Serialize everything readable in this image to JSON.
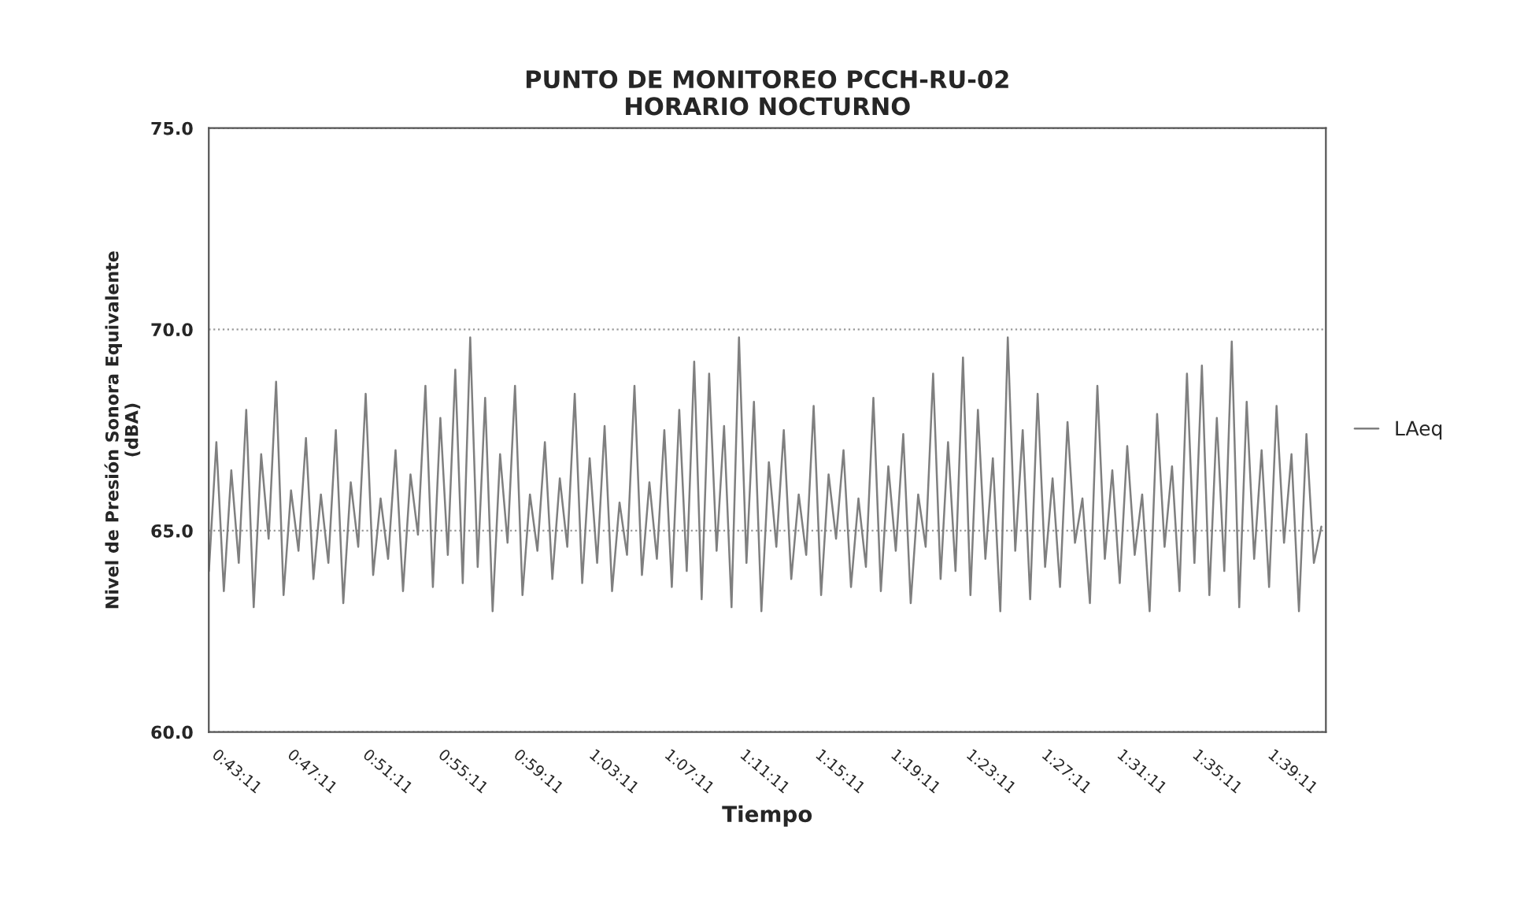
{
  "chart_data": {
    "type": "line",
    "title": "PUNTO DE MONITOREO PCCH-RU-02\nHORARIO NOCTURNO",
    "xlabel": "Tiempo",
    "ylabel": "Nivel de Presión Sonora Equivalente\n(dBA)",
    "series": [
      {
        "name": "LAeq",
        "color": "#7f7f7f",
        "x": [
          0.7112,
          0.7178,
          0.7244,
          0.731,
          0.7376,
          0.7442,
          0.7508,
          0.7574,
          0.764,
          0.7706,
          0.7772,
          0.7838,
          0.7904,
          0.797,
          0.8036,
          0.8102,
          0.8168,
          0.8234,
          0.83,
          0.8366,
          0.8432,
          0.8498,
          0.8564,
          0.863,
          0.8696,
          0.8762,
          0.8828,
          0.8894,
          0.896,
          0.9026,
          0.9092,
          0.9158,
          0.9224,
          0.929,
          0.9356,
          0.9422,
          0.9488,
          0.9554,
          0.962,
          0.9686,
          0.9752,
          0.9818,
          0.9884,
          0.995,
          1.0016,
          1.0082,
          1.0148,
          1.0214,
          1.028,
          1.0346,
          1.0412,
          1.0478,
          1.0544,
          1.061,
          1.0676,
          1.0742,
          1.0808,
          1.0874,
          1.094,
          1.1006,
          1.1072,
          1.1138,
          1.1204,
          1.127,
          1.1336,
          1.1402,
          1.1468,
          1.1534,
          1.16,
          1.1666,
          1.1732,
          1.1798,
          1.1864,
          1.193,
          1.1996,
          1.2062,
          1.2128,
          1.2194,
          1.226,
          1.2326,
          1.2392,
          1.2458,
          1.2524,
          1.259,
          1.2656,
          1.2722,
          1.2788,
          1.2854,
          1.292,
          1.2986,
          1.3052,
          1.3118,
          1.3184,
          1.325,
          1.3316,
          1.3382,
          1.3448,
          1.3514,
          1.358,
          1.3646,
          1.3712,
          1.3778,
          1.3844,
          1.391,
          1.3976,
          1.4042,
          1.4108,
          1.4174,
          1.424,
          1.4306,
          1.4372,
          1.4438,
          1.4504,
          1.457,
          1.4636,
          1.4702,
          1.4768,
          1.4834,
          1.49,
          1.4966,
          1.5032,
          1.5098,
          1.5164,
          1.523,
          1.5296,
          1.5362,
          1.5428,
          1.5494,
          1.556,
          1.5626,
          1.5692,
          1.5758,
          1.5824,
          1.589,
          1.5956,
          1.6022,
          1.6088,
          1.6154,
          1.622,
          1.6286,
          1.6352,
          1.6418,
          1.6484,
          1.655,
          1.6616,
          1.6682,
          1.6748,
          1.6814,
          1.688,
          1.6946
        ],
        "values": [
          64.0,
          67.2,
          63.5,
          66.5,
          64.2,
          68.0,
          63.1,
          66.9,
          64.8,
          68.7,
          63.4,
          66.0,
          64.5,
          67.3,
          63.8,
          65.9,
          64.2,
          67.5,
          63.2,
          66.2,
          64.6,
          68.4,
          63.9,
          65.8,
          64.3,
          67.0,
          63.5,
          66.4,
          64.9,
          68.6,
          63.6,
          67.8,
          64.4,
          69.0,
          63.7,
          69.8,
          64.1,
          68.3,
          63.0,
          66.9,
          64.7,
          68.6,
          63.4,
          65.9,
          64.5,
          67.2,
          63.8,
          66.3,
          64.6,
          68.4,
          63.7,
          66.8,
          64.2,
          67.6,
          63.5,
          65.7,
          64.4,
          68.6,
          63.9,
          66.2,
          64.3,
          67.5,
          63.6,
          68.0,
          64.0,
          69.2,
          63.3,
          68.9,
          64.5,
          67.6,
          63.1,
          69.8,
          64.2,
          68.2,
          63.0,
          66.7,
          64.6,
          67.5,
          63.8,
          65.9,
          64.4,
          68.1,
          63.4,
          66.4,
          64.8,
          67.0,
          63.6,
          65.8,
          64.1,
          68.3,
          63.5,
          66.6,
          64.5,
          67.4,
          63.2,
          65.9,
          64.6,
          68.9,
          63.8,
          67.2,
          64.0,
          69.3,
          63.4,
          68.0,
          64.3,
          66.8,
          63.0,
          69.8,
          64.5,
          67.5,
          63.3,
          68.4,
          64.1,
          66.3,
          63.6,
          67.7,
          64.7,
          65.8,
          63.2,
          68.6,
          64.3,
          66.5,
          63.7,
          67.1,
          64.4,
          65.9,
          63.0,
          67.9,
          64.6,
          66.6,
          63.5,
          68.9,
          64.2,
          69.1,
          63.4,
          67.8,
          64.0,
          69.7,
          63.1,
          68.2,
          64.3,
          67.0,
          63.6,
          68.1,
          64.7,
          66.9,
          63.0,
          67.4,
          64.2,
          65.1
        ]
      }
    ],
    "xlim": [
      0.7111,
      1.6986
    ],
    "xticks": [
      {
        "value": 0.71972,
        "label": "0:43:11"
      },
      {
        "value": 0.78639,
        "label": "0:47:11"
      },
      {
        "value": 0.85306,
        "label": "0:51:11"
      },
      {
        "value": 0.91972,
        "label": "0:55:11"
      },
      {
        "value": 0.98639,
        "label": "0:59:11"
      },
      {
        "value": 1.05306,
        "label": "1:03:11"
      },
      {
        "value": 1.11972,
        "label": "1:07:11"
      },
      {
        "value": 1.18639,
        "label": "1:11:11"
      },
      {
        "value": 1.25306,
        "label": "1:15:11"
      },
      {
        "value": 1.31972,
        "label": "1:19:11"
      },
      {
        "value": 1.38639,
        "label": "1:23:11"
      },
      {
        "value": 1.45306,
        "label": "1:27:11"
      },
      {
        "value": 1.51972,
        "label": "1:31:11"
      },
      {
        "value": 1.58639,
        "label": "1:35:11"
      },
      {
        "value": 1.65306,
        "label": "1:39:11"
      }
    ],
    "ylim": [
      60,
      75
    ],
    "yticks": [
      {
        "value": 60,
        "label": "60.0"
      },
      {
        "value": 65,
        "label": "65.0"
      },
      {
        "value": 70,
        "label": "70.0"
      },
      {
        "value": 75,
        "label": "75.0"
      }
    ],
    "grid": "y",
    "legend": "right",
    "marker": "none",
    "line_style": "solid"
  }
}
